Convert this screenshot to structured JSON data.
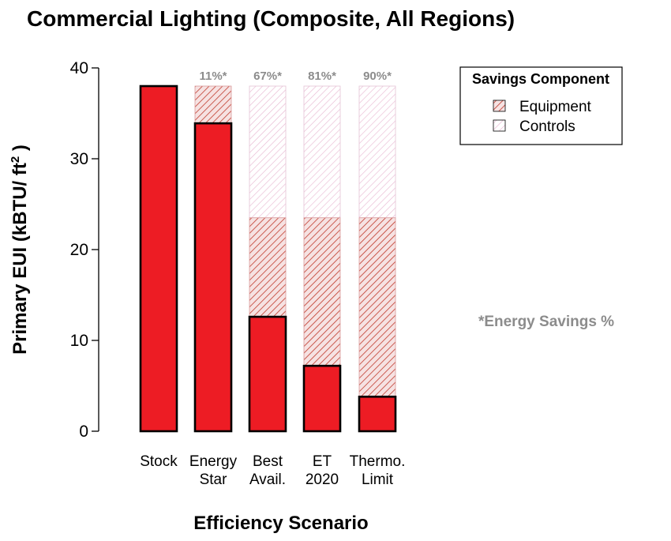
{
  "chart_data": {
    "type": "bar",
    "title": "Commercial Lighting (Composite, All Regions)",
    "xlabel": "Efficiency Scenario",
    "ylabel": "Primary EUI (kBTU/ ft",
    "ylabel_superscript": "2",
    "ylabel_end": " )",
    "ylim": [
      0,
      40
    ],
    "yticks": [
      "0",
      "10",
      "20",
      "30",
      "40"
    ],
    "categories": [
      [
        "Stock"
      ],
      [
        "Energy",
        "Star"
      ],
      [
        "Best",
        "Avail."
      ],
      [
        "ET",
        "2020"
      ],
      [
        "Thermo.",
        "Limit"
      ]
    ],
    "stock_value": 38,
    "values": [
      38,
      33.9,
      12.6,
      7.2,
      3.8
    ],
    "series": [
      {
        "name": "Equipment",
        "color": "#c0392b",
        "values": [
          0,
          4.1,
          10.9,
          16.3,
          19.7
        ]
      },
      {
        "name": "Controls",
        "color": "#e8b4d0",
        "values": [
          0,
          0,
          14.5,
          14.5,
          14.5
        ]
      }
    ],
    "savings_labels": [
      "",
      "11%*",
      "67%*",
      "81%*",
      "90%*"
    ],
    "bar_color": "#ed1c24",
    "legend": {
      "title": "Savings Component",
      "position": "top-right",
      "entries": [
        "Equipment",
        "Controls"
      ]
    },
    "note": "*Energy Savings %",
    "grid": false
  }
}
